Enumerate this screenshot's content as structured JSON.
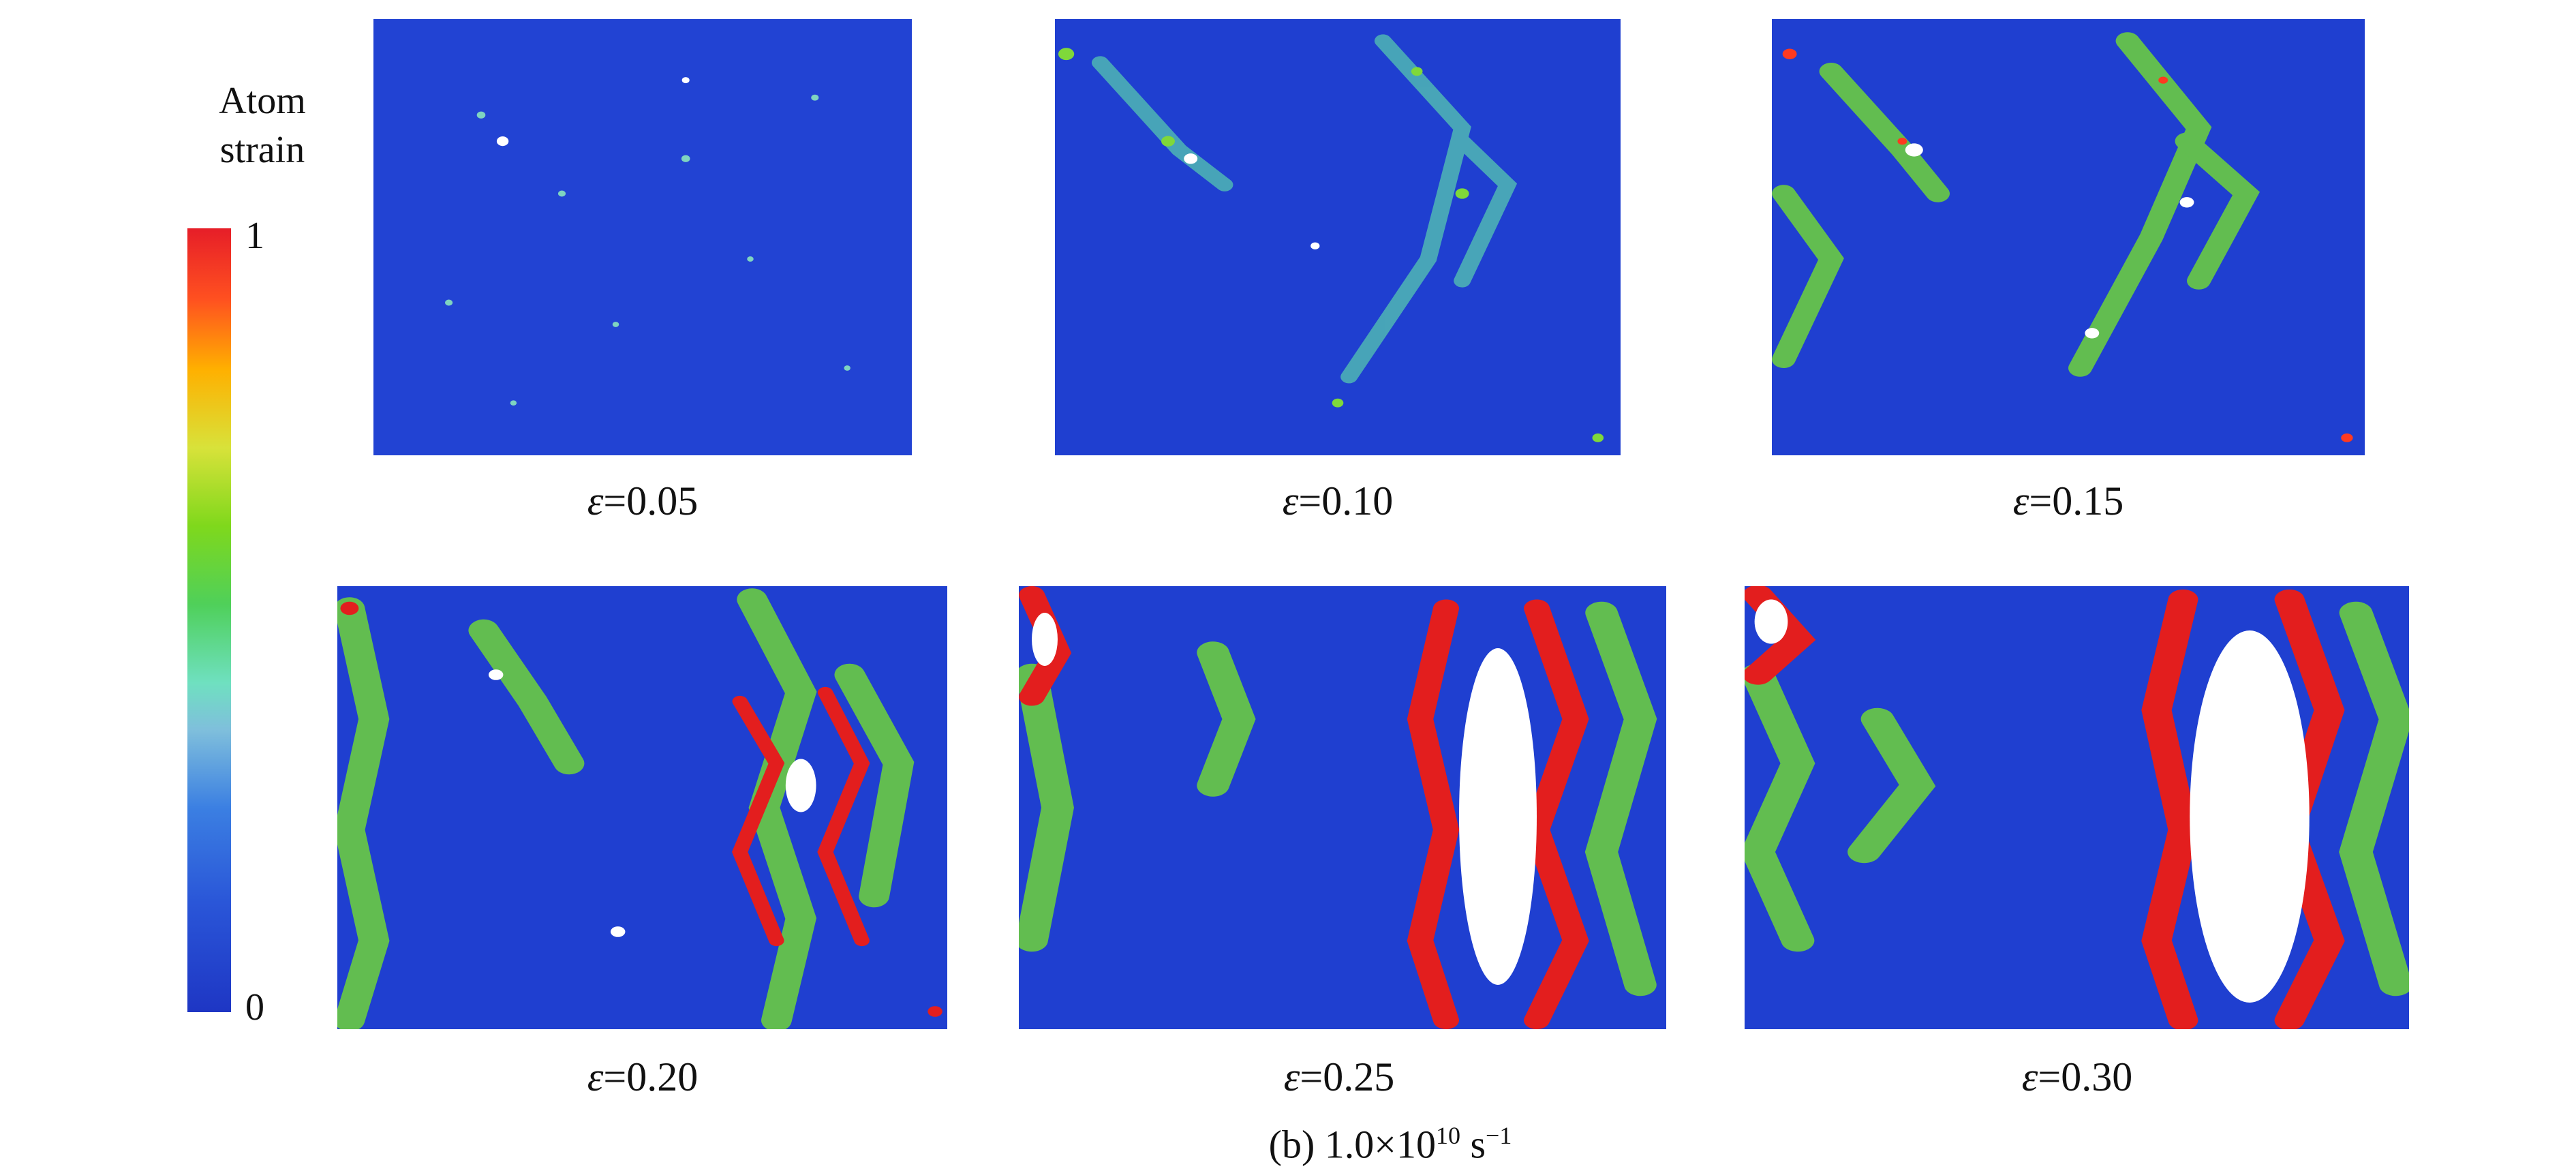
{
  "legend": {
    "title_line1": "Atom",
    "title_line2": "strain",
    "max_label": "1",
    "min_label": "0"
  },
  "panels": [
    {
      "eps": "ε",
      "value": "=0.05"
    },
    {
      "eps": "ε",
      "value": "=0.10"
    },
    {
      "eps": "ε",
      "value": "=0.15"
    },
    {
      "eps": "ε",
      "value": "=0.20"
    },
    {
      "eps": "ε",
      "value": "=0.25"
    },
    {
      "eps": "ε",
      "value": "=0.30"
    }
  ],
  "caption": {
    "prefix": "(b) 1.0×10",
    "exponent": "10",
    "unit": " s",
    "unit_exp": "−1"
  },
  "colors": {
    "base_blue": "#1f3fd0",
    "green": "#6ed43a",
    "red": "#e31e1e",
    "void": "#ffffff"
  }
}
